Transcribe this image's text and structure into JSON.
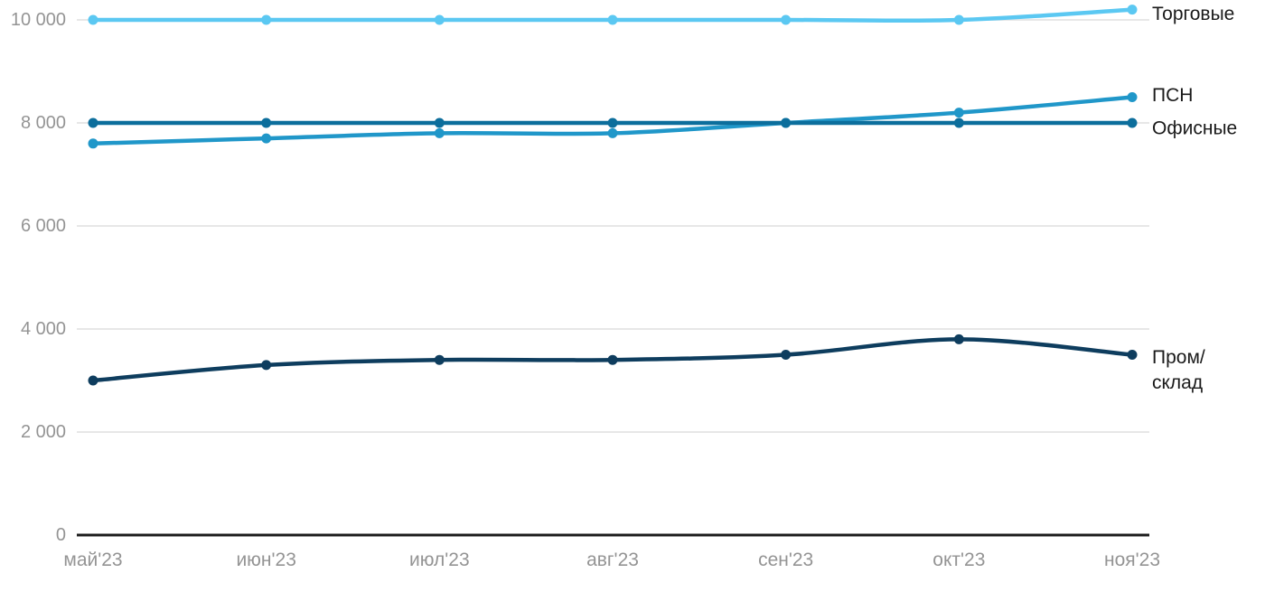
{
  "chart_data": {
    "type": "line",
    "title": "",
    "xlabel": "",
    "ylabel": "",
    "x": [
      "май'23",
      "июн'23",
      "июл'23",
      "авг'23",
      "сен'23",
      "окт'23",
      "ноя'23"
    ],
    "series": [
      {
        "name": "Торговые",
        "values": [
          10000,
          10000,
          10000,
          10000,
          10000,
          10000,
          10200
        ],
        "color": "#5BC8F2",
        "label_lines": [
          "Торговые"
        ]
      },
      {
        "name": "ПСН",
        "values": [
          7600,
          7700,
          7800,
          7800,
          8000,
          8200,
          8500
        ],
        "color": "#2097C9",
        "label_lines": [
          "ПСН"
        ]
      },
      {
        "name": "Офисные",
        "values": [
          8000,
          8000,
          8000,
          8000,
          8000,
          8000,
          8000
        ],
        "color": "#0C6E9C",
        "label_lines": [
          "Офисные"
        ]
      },
      {
        "name": "Пром/склад",
        "values": [
          3000,
          3300,
          3400,
          3400,
          3500,
          3800,
          3500
        ],
        "color": "#0E3D5E",
        "label_lines": [
          "Пром/",
          "склад"
        ]
      }
    ],
    "yticks": [
      0,
      2000,
      4000,
      6000,
      8000,
      10000
    ],
    "ytick_labels": [
      "0",
      "2 000",
      "4 000",
      "6 000",
      "8 000",
      "10 000"
    ],
    "ylim": [
      0,
      10000
    ],
    "grid": true,
    "smooth": true,
    "legend_position": "right-of-line-end"
  },
  "colors": {
    "background": "#FFFFFF",
    "grid": "#E7E7E7",
    "axis_line": "#1C1C1C",
    "axis_label": "#949494",
    "series_label": "#1A1A1A"
  }
}
